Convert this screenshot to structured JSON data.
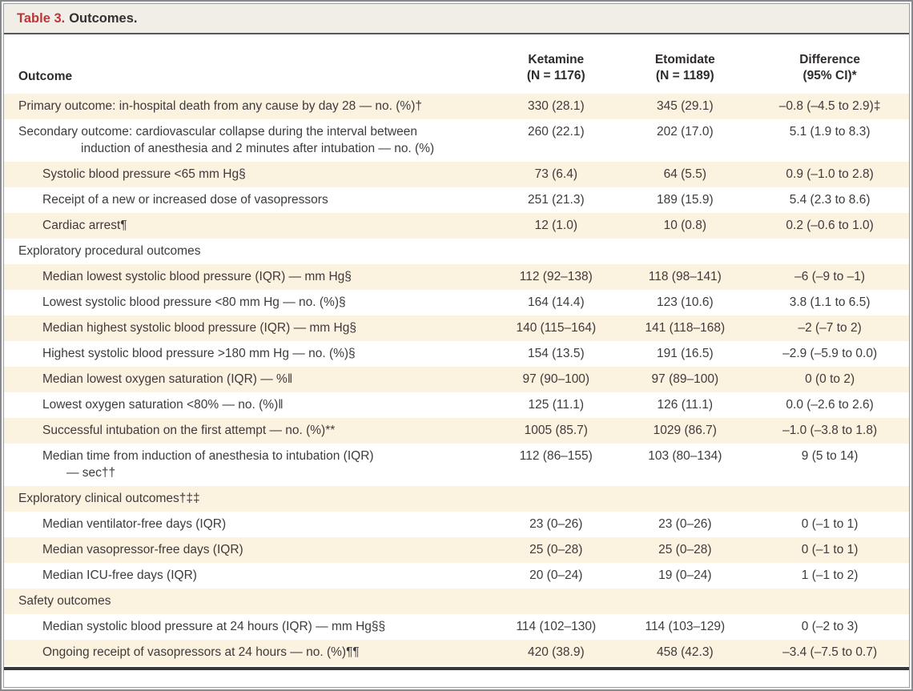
{
  "title": {
    "label": "Table 3.",
    "text": "Outcomes."
  },
  "columns": {
    "outcome": "Outcome",
    "ketamine": {
      "line1": "Ketamine",
      "line2": "(N = 1176)"
    },
    "etomidate": {
      "line1": "Etomidate",
      "line2": "(N = 1189)"
    },
    "difference": {
      "line1": "Difference",
      "line2": "(95% CI)*"
    }
  },
  "rows": [
    {
      "label": "Primary outcome: in-hospital death from any cause by day 28 — no. (%)†",
      "ketamine": "330 (28.1)",
      "etomidate": "345 (29.1)",
      "difference": "–0.8 (–4.5 to 2.9)‡",
      "indent": 18,
      "hang": 18,
      "shaded": true
    },
    {
      "label": "Secondary outcome: cardiovascular collapse during the interval between\ninduction of anesthesia and 2 minutes after intubation — no. (%)",
      "ketamine": "260 (22.1)",
      "etomidate": "202 (17.0)",
      "difference": "5.1 (1.9 to 8.3)",
      "indent": 18,
      "hang": 96,
      "shaded": false
    },
    {
      "label": "Systolic blood pressure <65 mm Hg§",
      "ketamine": "73 (6.4)",
      "etomidate": "64 (5.5)",
      "difference": "0.9 (–1.0 to 2.8)",
      "indent": 48,
      "hang": 48,
      "shaded": true
    },
    {
      "label": "Receipt of a new or increased dose of vasopressors",
      "ketamine": "251 (21.3)",
      "etomidate": "189 (15.9)",
      "difference": "5.4 (2.3 to 8.6)",
      "indent": 48,
      "hang": 48,
      "shaded": false
    },
    {
      "label": "Cardiac arrest¶",
      "ketamine": "12 (1.0)",
      "etomidate": "10 (0.8)",
      "difference": "0.2 (–0.6 to 1.0)",
      "indent": 48,
      "hang": 48,
      "shaded": true
    },
    {
      "label": "Exploratory procedural outcomes",
      "ketamine": "",
      "etomidate": "",
      "difference": "",
      "indent": 18,
      "hang": 18,
      "shaded": false
    },
    {
      "label": "Median lowest systolic blood pressure (IQR) — mm Hg§",
      "ketamine": "112 (92–138)",
      "etomidate": "118 (98–141)",
      "difference": "–6 (–9 to –1)",
      "indent": 48,
      "hang": 48,
      "shaded": true
    },
    {
      "label": "Lowest systolic blood pressure <80 mm Hg — no. (%)§",
      "ketamine": "164 (14.4)",
      "etomidate": "123 (10.6)",
      "difference": "3.8 (1.1 to 6.5)",
      "indent": 48,
      "hang": 48,
      "shaded": false
    },
    {
      "label": "Median highest systolic blood pressure (IQR) — mm Hg§",
      "ketamine": "140 (115–164)",
      "etomidate": "141 (118–168)",
      "difference": "–2 (–7 to 2)",
      "indent": 48,
      "hang": 48,
      "shaded": true
    },
    {
      "label": "Highest systolic blood pressure >180 mm Hg — no. (%)§",
      "ketamine": "154 (13.5)",
      "etomidate": "191 (16.5)",
      "difference": "–2.9 (–5.9 to 0.0)",
      "indent": 48,
      "hang": 48,
      "shaded": false
    },
    {
      "label": "Median lowest oxygen saturation (IQR) — %‖",
      "ketamine": "97 (90–100)",
      "etomidate": "97 (89–100)",
      "difference": "0 (0 to 2)",
      "indent": 48,
      "hang": 48,
      "shaded": true
    },
    {
      "label": "Lowest oxygen saturation <80% — no. (%)‖",
      "ketamine": "125 (11.1)",
      "etomidate": "126 (11.1)",
      "difference": "0.0 (–2.6 to 2.6)",
      "indent": 48,
      "hang": 48,
      "shaded": false
    },
    {
      "label": "Successful intubation on the first attempt — no. (%)**",
      "ketamine": "1005 (85.7)",
      "etomidate": "1029 (86.7)",
      "difference": "–1.0 (–3.8 to 1.8)",
      "indent": 48,
      "hang": 48,
      "shaded": true
    },
    {
      "label": "Median time from induction of anesthesia to intubation (IQR)\n— sec††",
      "ketamine": "112 (86–155)",
      "etomidate": "103 (80–134)",
      "difference": "9 (5 to 14)",
      "indent": 48,
      "hang": 78,
      "shaded": false
    },
    {
      "label": "Exploratory clinical outcomes†‡‡",
      "ketamine": "",
      "etomidate": "",
      "difference": "",
      "indent": 18,
      "hang": 18,
      "shaded": true
    },
    {
      "label": "Median ventilator-free days (IQR)",
      "ketamine": "23 (0–26)",
      "etomidate": "23 (0–26)",
      "difference": "0 (–1 to 1)",
      "indent": 48,
      "hang": 48,
      "shaded": false
    },
    {
      "label": "Median vasopressor-free days (IQR)",
      "ketamine": "25 (0–28)",
      "etomidate": "25 (0–28)",
      "difference": "0 (–1 to 1)",
      "indent": 48,
      "hang": 48,
      "shaded": true
    },
    {
      "label": "Median ICU-free days (IQR)",
      "ketamine": "20 (0–24)",
      "etomidate": "19 (0–24)",
      "difference": "1 (–1 to 2)",
      "indent": 48,
      "hang": 48,
      "shaded": false
    },
    {
      "label": "Safety outcomes",
      "ketamine": "",
      "etomidate": "",
      "difference": "",
      "indent": 18,
      "hang": 18,
      "shaded": true
    },
    {
      "label": "Median systolic blood pressure at 24 hours (IQR) — mm Hg§§",
      "ketamine": "114 (102–130)",
      "etomidate": "114 (103–129)",
      "difference": "0 (–2 to 3)",
      "indent": 48,
      "hang": 48,
      "shaded": false
    },
    {
      "label": "Ongoing receipt of vasopressors at 24 hours — no. (%)¶¶",
      "ketamine": "420 (38.9)",
      "etomidate": "458 (42.3)",
      "difference": "–3.4 (–7.5 to 0.7)",
      "indent": 48,
      "hang": 48,
      "shaded": true
    }
  ],
  "colors": {
    "accent_red": "#bd353a",
    "row_shade": "#fbf2df",
    "title_bar_bg": "#f1eee7",
    "frame_border": "#87898c",
    "title_rule": "#57585b",
    "bottom_rule": "#3a383a",
    "text": "#3f3b3c"
  }
}
